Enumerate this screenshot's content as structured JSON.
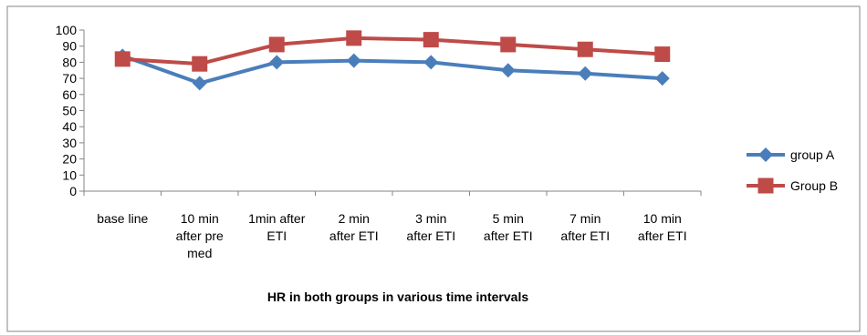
{
  "chart_data": {
    "type": "line",
    "title": "HR in both groups in various time intervals",
    "categories": [
      [
        "base line"
      ],
      [
        "10 min",
        "after pre",
        "med"
      ],
      [
        "1min after",
        "ETI"
      ],
      [
        "2 min",
        "after ETI"
      ],
      [
        "3 min",
        "after ETI"
      ],
      [
        "5 min",
        "after ETI"
      ],
      [
        "7 min",
        "after ETI"
      ],
      [
        "10 min",
        "after ETI"
      ]
    ],
    "y_ticks": [
      "0",
      "10",
      "20",
      "30",
      "40",
      "50",
      "60",
      "70",
      "80",
      "90",
      "100"
    ],
    "ylim": [
      0,
      100
    ],
    "grid": false,
    "legend_position": "right",
    "series": [
      {
        "name": "group A",
        "marker": "diamond",
        "color": "#4A7EBB",
        "values": [
          84,
          67,
          80,
          81,
          80,
          75,
          73,
          70
        ]
      },
      {
        "name": "Group B",
        "marker": "square",
        "color": "#BE4B48",
        "values": [
          82,
          79,
          91,
          95,
          94,
          91,
          88,
          85
        ]
      }
    ]
  }
}
